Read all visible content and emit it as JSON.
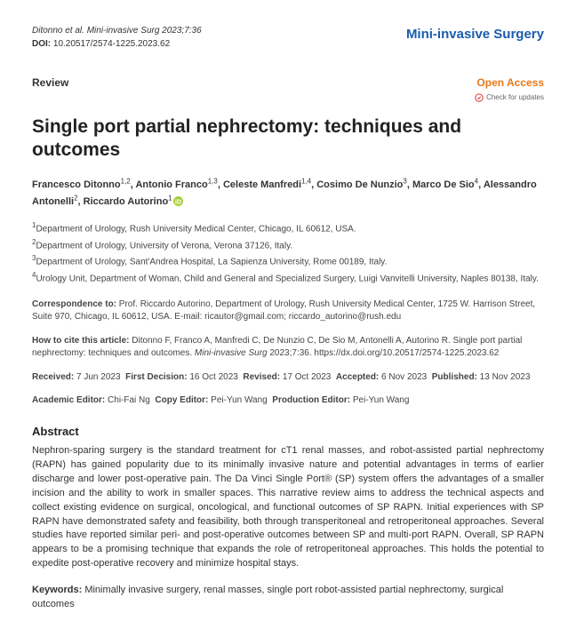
{
  "header": {
    "citation": "Ditonno et al. Mini-invasive Surg 2023;7:36",
    "doi_label": "DOI:",
    "doi": "10.20517/2574-1225.2023.62",
    "journal": "Mini-invasive Surgery"
  },
  "meta": {
    "type": "Review",
    "open_access": "Open Access",
    "check_updates": "Check for updates"
  },
  "title": "Single port partial nephrectomy: techniques and outcomes",
  "authors_html": "Francesco Ditonno<sup>1,2</sup>, Antonio Franco<sup>1,3</sup>, Celeste Manfredi<sup>1,4</sup>, Cosimo De Nunzio<sup>3</sup>, Marco De Sio<sup>4</sup>, Alessandro Antonelli<sup>2</sup>, Riccardo Autorino<sup>1</sup>",
  "affiliations": [
    "Department of Urology, Rush University Medical Center, Chicago, IL 60612, USA.",
    "Department of Urology, University of Verona, Verona 37126, Italy.",
    "Department of Urology, Sant'Andrea Hospital, La Sapienza University, Rome 00189, Italy.",
    "Urology Unit, Department of Woman, Child and General and Specialized Surgery, Luigi Vanvitelli University, Naples 80138, Italy."
  ],
  "correspondence": {
    "label": "Correspondence to:",
    "text": "Prof. Riccardo Autorino, Department of Urology, Rush University Medical Center, 1725 W. Harrison Street, Suite 970, Chicago, IL 60612, USA. E-mail: ricautor@gmail.com; riccardo_autorino@rush.edu"
  },
  "howtocite": {
    "label": "How to cite this article:",
    "text": "Ditonno F, Franco A, Manfredi C, De Nunzio C, De Sio M, Antonelli A, Autorino R. Single port partial nephrectomy: techniques and outcomes. ",
    "journal_italic": "Mini-invasive Surg",
    "tail": " 2023;7:36. https://dx.doi.org/10.20517/2574-1225.2023.62"
  },
  "dates": {
    "received_label": "Received:",
    "received": "7 Jun 2023",
    "first_decision_label": "First Decision:",
    "first_decision": "16 Oct 2023",
    "revised_label": "Revised:",
    "revised": "17 Oct 2023",
    "accepted_label": "Accepted:",
    "accepted": "6 Nov 2023",
    "published_label": "Published:",
    "published": "13 Nov 2023"
  },
  "editors": {
    "academic_label": "Academic Editor:",
    "academic": "Chi-Fai Ng",
    "copy_label": "Copy Editor:",
    "copy": "Pei-Yun Wang",
    "production_label": "Production Editor:",
    "production": "Pei-Yun Wang"
  },
  "abstract": {
    "heading": "Abstract",
    "body": "Nephron-sparing surgery is the standard treatment for cT1 renal masses, and robot-assisted partial nephrectomy (RAPN) has gained popularity due to its minimally invasive nature and potential advantages in terms of earlier discharge and lower post-operative pain. The Da Vinci Single Port® (SP) system offers the advantages of a smaller incision and the ability to work in smaller spaces. This narrative review aims to address the technical aspects and collect existing evidence on surgical, oncological, and functional outcomes of SP RAPN. Initial experiences with SP RAPN have demonstrated safety and feasibility, both through transperitoneal and retroperitoneal approaches. Several studies have reported similar peri- and post-operative outcomes between SP and multi-port RAPN. Overall, SP RAPN appears to be a promising technique that expands the role of retroperitoneal approaches. This holds the potential to expedite post-operative recovery and minimize hospital stays."
  },
  "keywords": {
    "label": "Keywords:",
    "text": "Minimally invasive surgery, renal masses, single port robot-assisted partial nephrectomy, surgical outcomes"
  },
  "colors": {
    "journal_blue": "#1a5cb0",
    "open_access_orange": "#e67817",
    "orcid_green": "#a6ce39"
  }
}
